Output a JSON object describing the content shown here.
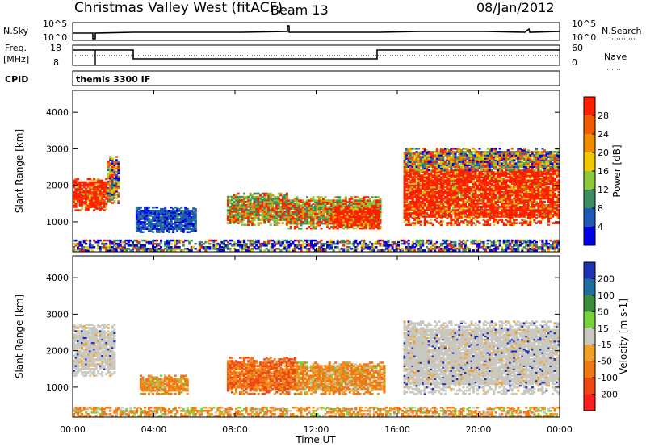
{
  "header": {
    "title": "Christmas Valley West (fitACF)",
    "beam": "Beam 13",
    "date": "08/Jan/2012"
  },
  "aux_panels": {
    "nsky_label": "N.Sky",
    "nsky_ticks": [
      "10^5",
      "10^0"
    ],
    "nsearch_label": "N.Search",
    "nsearch_ticks": [
      "10^5",
      "10^0"
    ],
    "freq_label_1": "Freq.",
    "freq_label_2": "[MHz]",
    "freq_ticks": [
      "18",
      "8"
    ],
    "nave_label": "Nave",
    "nave_ticks": [
      "60",
      "0"
    ],
    "cpid_label": "CPID",
    "cpid_value": "themis 3300 IF"
  },
  "chart_data": [
    {
      "type": "heatmap",
      "name": "power",
      "ylabel": "Slant Range [km]",
      "ylim": [
        180,
        4600
      ],
      "yticks": [
        1000,
        2000,
        3000,
        4000
      ],
      "colorbar_label": "Power [dB]",
      "colorbar_ticks": [
        4,
        8,
        12,
        16,
        20,
        24,
        28
      ],
      "colorbar_colors": [
        "#0000e6",
        "#1e5ab4",
        "#3c8c64",
        "#8cc83c",
        "#f0c800",
        "#f08c00",
        "#f05a00",
        "#ff1e00"
      ],
      "regions": [
        {
          "t0": 0.0,
          "t1": 1.7,
          "r0": 1300,
          "r1": 2200,
          "level": "high"
        },
        {
          "t0": 1.7,
          "t1": 2.3,
          "r0": 1500,
          "r1": 2800,
          "level": "mixed"
        },
        {
          "t0": 3.1,
          "t1": 6.0,
          "r0": 700,
          "r1": 1400,
          "level": "low"
        },
        {
          "t0": 7.6,
          "t1": 10.5,
          "r0": 900,
          "r1": 1800,
          "level": "mid"
        },
        {
          "t0": 10.5,
          "t1": 15.1,
          "r0": 800,
          "r1": 1700,
          "level": "mid"
        },
        {
          "t0": 12.8,
          "t1": 15.0,
          "r0": 800,
          "r1": 1400,
          "level": "high"
        },
        {
          "t0": 16.3,
          "t1": 24.0,
          "r0": 900,
          "r1": 2600,
          "level": "high"
        },
        {
          "t0": 16.3,
          "t1": 24.0,
          "r0": 2400,
          "r1": 3000,
          "level": "mixed"
        },
        {
          "t0": 0.0,
          "t1": 24.0,
          "r0": 200,
          "r1": 500,
          "level": "band"
        }
      ]
    },
    {
      "type": "heatmap",
      "name": "velocity",
      "ylabel": "Slant Range [km]",
      "xlabel": "Time UT",
      "ylim": [
        180,
        4600
      ],
      "yticks": [
        1000,
        2000,
        3000,
        4000
      ],
      "xticks": [
        "00:00",
        "04:00",
        "08:00",
        "12:00",
        "16:00",
        "20:00",
        "00:00"
      ],
      "colorbar_label": "Velocity [m s-1]",
      "colorbar_ticks": [
        200,
        100,
        50,
        15,
        -15,
        -50,
        -100,
        -200
      ],
      "colorbar_colors": [
        "#1e32b4",
        "#1e6ea0",
        "#3c8c3c",
        "#78d23c",
        "#c8c8c0",
        "#f0a028",
        "#f07814",
        "#f04614",
        "#ff1e1e"
      ],
      "regions": [
        {
          "t0": 0.0,
          "t1": 2.1,
          "r0": 1300,
          "r1": 2700,
          "level": "neutral"
        },
        {
          "t0": 3.3,
          "t1": 5.6,
          "r0": 800,
          "r1": 1300,
          "level": "away"
        },
        {
          "t0": 7.6,
          "t1": 11.0,
          "r0": 800,
          "r1": 1800,
          "level": "away_strong"
        },
        {
          "t0": 11.0,
          "t1": 15.3,
          "r0": 800,
          "r1": 1700,
          "level": "away"
        },
        {
          "t0": 16.3,
          "t1": 24.0,
          "r0": 800,
          "r1": 2800,
          "level": "neutral"
        },
        {
          "t0": 0.0,
          "t1": 24.0,
          "r0": 200,
          "r1": 450,
          "level": "band"
        }
      ]
    }
  ]
}
